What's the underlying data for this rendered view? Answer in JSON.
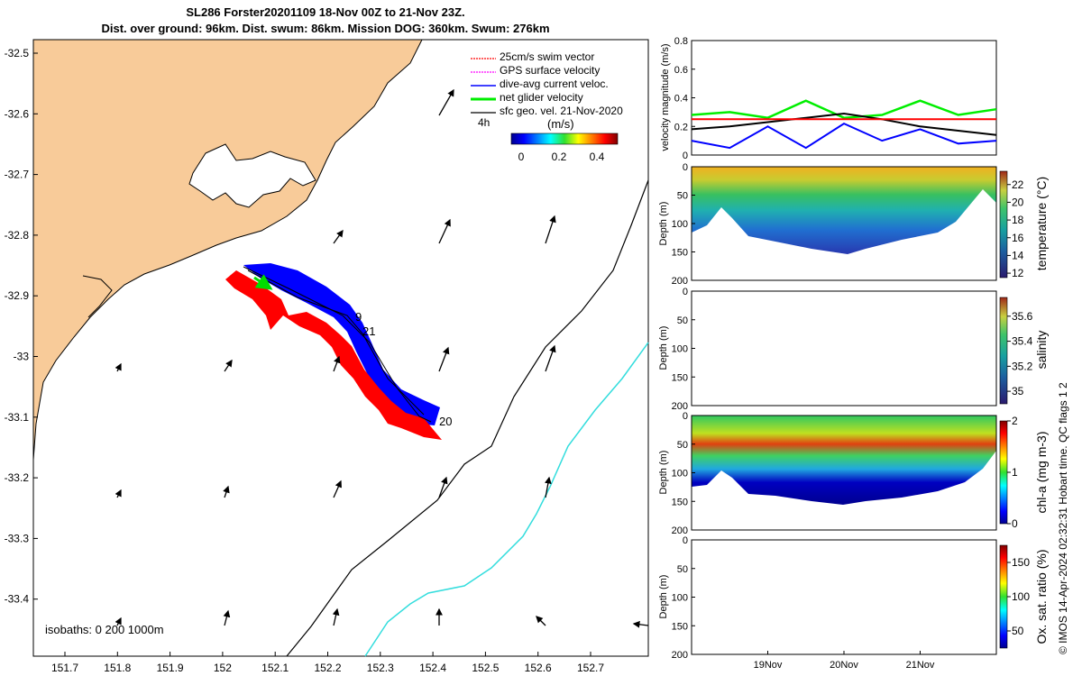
{
  "title": {
    "line1": "SL286 Forster20201109 18-Nov 00Z to 21-Nov 23Z.",
    "line2": "Dist. over ground: 96km. Dist. swum: 86km. Mission DOG: 360km. Swum: 276km"
  },
  "credit": "© IMOS 14-Apr-2024 02:32:31 Hobart time. QC flags 1  2",
  "map": {
    "x_ticks": [
      "151.7",
      "151.8",
      "151.9",
      "152",
      "152.1",
      "152.2",
      "152.3",
      "152.4",
      "152.5",
      "152.6",
      "152.7"
    ],
    "y_ticks": [
      "-32.5",
      "-32.6",
      "-32.7",
      "-32.8",
      "-32.9",
      "-33",
      "-33.1",
      "-33.2",
      "-33.3",
      "-33.4"
    ],
    "legend": [
      {
        "label": "25cm/s swim vector",
        "color": "#ff0000"
      },
      {
        "label": "GPS surface velocity",
        "color": "#ff00ff"
      },
      {
        "label": "dive-avg current veloc.",
        "color": "#0000ff"
      },
      {
        "label": "net glider velocity",
        "color": "#00ee00"
      },
      {
        "label": "sfc geo. vel. 21-Nov-2020",
        "color": "#000000"
      }
    ],
    "time_label": "4h",
    "colorbar": {
      "unit": "(m/s)",
      "ticks": [
        "0",
        "0.2",
        "0.4"
      ]
    },
    "isobaths_label": "isobaths: 0   200  1000m",
    "track_labels": [
      "9",
      "21",
      "20"
    ],
    "colors": {
      "land": "#f8cb99",
      "isobath_200": "#000000",
      "isobath_1000": "#33dddd",
      "track_fill": "#0000ff",
      "swim_vec": "#ff0000"
    }
  },
  "chart_data": [
    {
      "type": "line",
      "ylabel": "velocity magnitude (m/s)",
      "ylim": [
        0,
        0.8
      ],
      "y_ticks": [
        "0",
        "0.2",
        "0.4",
        "0.6",
        "0.8"
      ],
      "x": [
        18.0,
        18.5,
        19.0,
        19.5,
        20.0,
        20.5,
        21.0,
        21.5,
        22.0
      ],
      "series": [
        {
          "color": "#00ee00",
          "values": [
            0.28,
            0.3,
            0.26,
            0.38,
            0.26,
            0.28,
            0.38,
            0.28,
            0.32
          ]
        },
        {
          "color": "#0000ff",
          "values": [
            0.1,
            0.05,
            0.2,
            0.05,
            0.22,
            0.1,
            0.18,
            0.08,
            0.1
          ]
        },
        {
          "color": "#000000",
          "values": [
            0.18,
            0.2,
            0.23,
            0.26,
            0.29,
            0.25,
            0.2,
            0.17,
            0.14
          ]
        },
        {
          "color": "#ff0000",
          "values": [
            0.25,
            0.25,
            0.25,
            0.25,
            0.25,
            0.25,
            0.25,
            0.25,
            0.25
          ]
        }
      ]
    },
    {
      "type": "heatmap",
      "ylabel": "Depth (m)",
      "ylim": [
        200,
        0
      ],
      "y_ticks": [
        "0",
        "50",
        "100",
        "150",
        "200"
      ],
      "colorbar_label": "temperature (°C)",
      "colorbar_ticks": [
        "12",
        "14",
        "16",
        "18",
        "20",
        "22"
      ],
      "clim": [
        11.5,
        23.5
      ]
    },
    {
      "type": "heatmap",
      "ylabel": "Depth (m)",
      "ylim": [
        200,
        0
      ],
      "y_ticks": [
        "0",
        "50",
        "100",
        "150",
        "200"
      ],
      "colorbar_label": "salinity",
      "colorbar_ticks": [
        "35",
        "35.2",
        "35.4",
        "35.6"
      ],
      "clim": [
        34.9,
        35.75
      ]
    },
    {
      "type": "heatmap",
      "ylabel": "Depth (m)",
      "ylim": [
        200,
        0
      ],
      "y_ticks": [
        "0",
        "50",
        "100",
        "150",
        "200"
      ],
      "colorbar_label": "chl-a (mg m-3)",
      "colorbar_ticks": [
        "0",
        "1",
        "2"
      ],
      "clim": [
        0,
        2
      ]
    },
    {
      "type": "heatmap",
      "ylabel": "Depth (m)",
      "ylim": [
        200,
        0
      ],
      "y_ticks": [
        "0",
        "50",
        "100",
        "150",
        "200"
      ],
      "colorbar_label": "Ox. sat. ratio (%)",
      "colorbar_ticks": [
        "50",
        "100",
        "150"
      ],
      "clim": [
        25,
        175
      ],
      "x_ticks": [
        "19Nov",
        "20Nov",
        "21Nov"
      ]
    }
  ]
}
